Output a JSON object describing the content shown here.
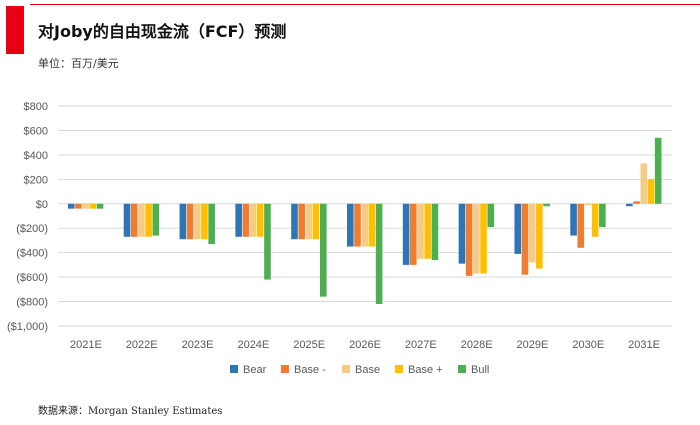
{
  "header": {
    "title": "对Joby的自由现金流（FCF）预测",
    "unit": "单位：百万/美元"
  },
  "footer": {
    "source": "数据来源：Morgan Stanley Estimates"
  },
  "colors": {
    "accent": "#e60012",
    "grid": "#d9d9d9"
  },
  "chart_data": {
    "type": "bar",
    "categories": [
      "2021E",
      "2022E",
      "2023E",
      "2024E",
      "2025E",
      "2026E",
      "2027E",
      "2028E",
      "2029E",
      "2030E",
      "2031E"
    ],
    "series": [
      {
        "name": "Bear",
        "color": "#2e75b6",
        "values": [
          -40,
          -270,
          -290,
          -270,
          -290,
          -350,
          -500,
          -490,
          -410,
          -260,
          -20
        ]
      },
      {
        "name": "Base -",
        "color": "#ed7d31",
        "values": [
          -40,
          -270,
          -290,
          -270,
          -290,
          -350,
          -500,
          -590,
          -580,
          -360,
          20
        ]
      },
      {
        "name": "Base",
        "color": "#f4cc88",
        "values": [
          -40,
          -270,
          -290,
          -270,
          -290,
          -350,
          -450,
          -570,
          -480,
          -10,
          330
        ]
      },
      {
        "name": "Base +",
        "color": "#ffc000",
        "values": [
          -40,
          -270,
          -290,
          -270,
          -290,
          -350,
          -450,
          -570,
          -530,
          -270,
          200
        ]
      },
      {
        "name": "Bull",
        "color": "#4caf50",
        "values": [
          -40,
          -260,
          -330,
          -620,
          -760,
          -820,
          -460,
          -190,
          -20,
          -190,
          540
        ]
      }
    ],
    "yticks": [
      "$800",
      "$600",
      "$400",
      "$200",
      "$0",
      "($200)",
      "($400)",
      "($600)",
      "($800)",
      "($1,000)"
    ],
    "ylim": [
      -1000,
      800
    ],
    "legend_position": "bottom",
    "grid": true
  }
}
